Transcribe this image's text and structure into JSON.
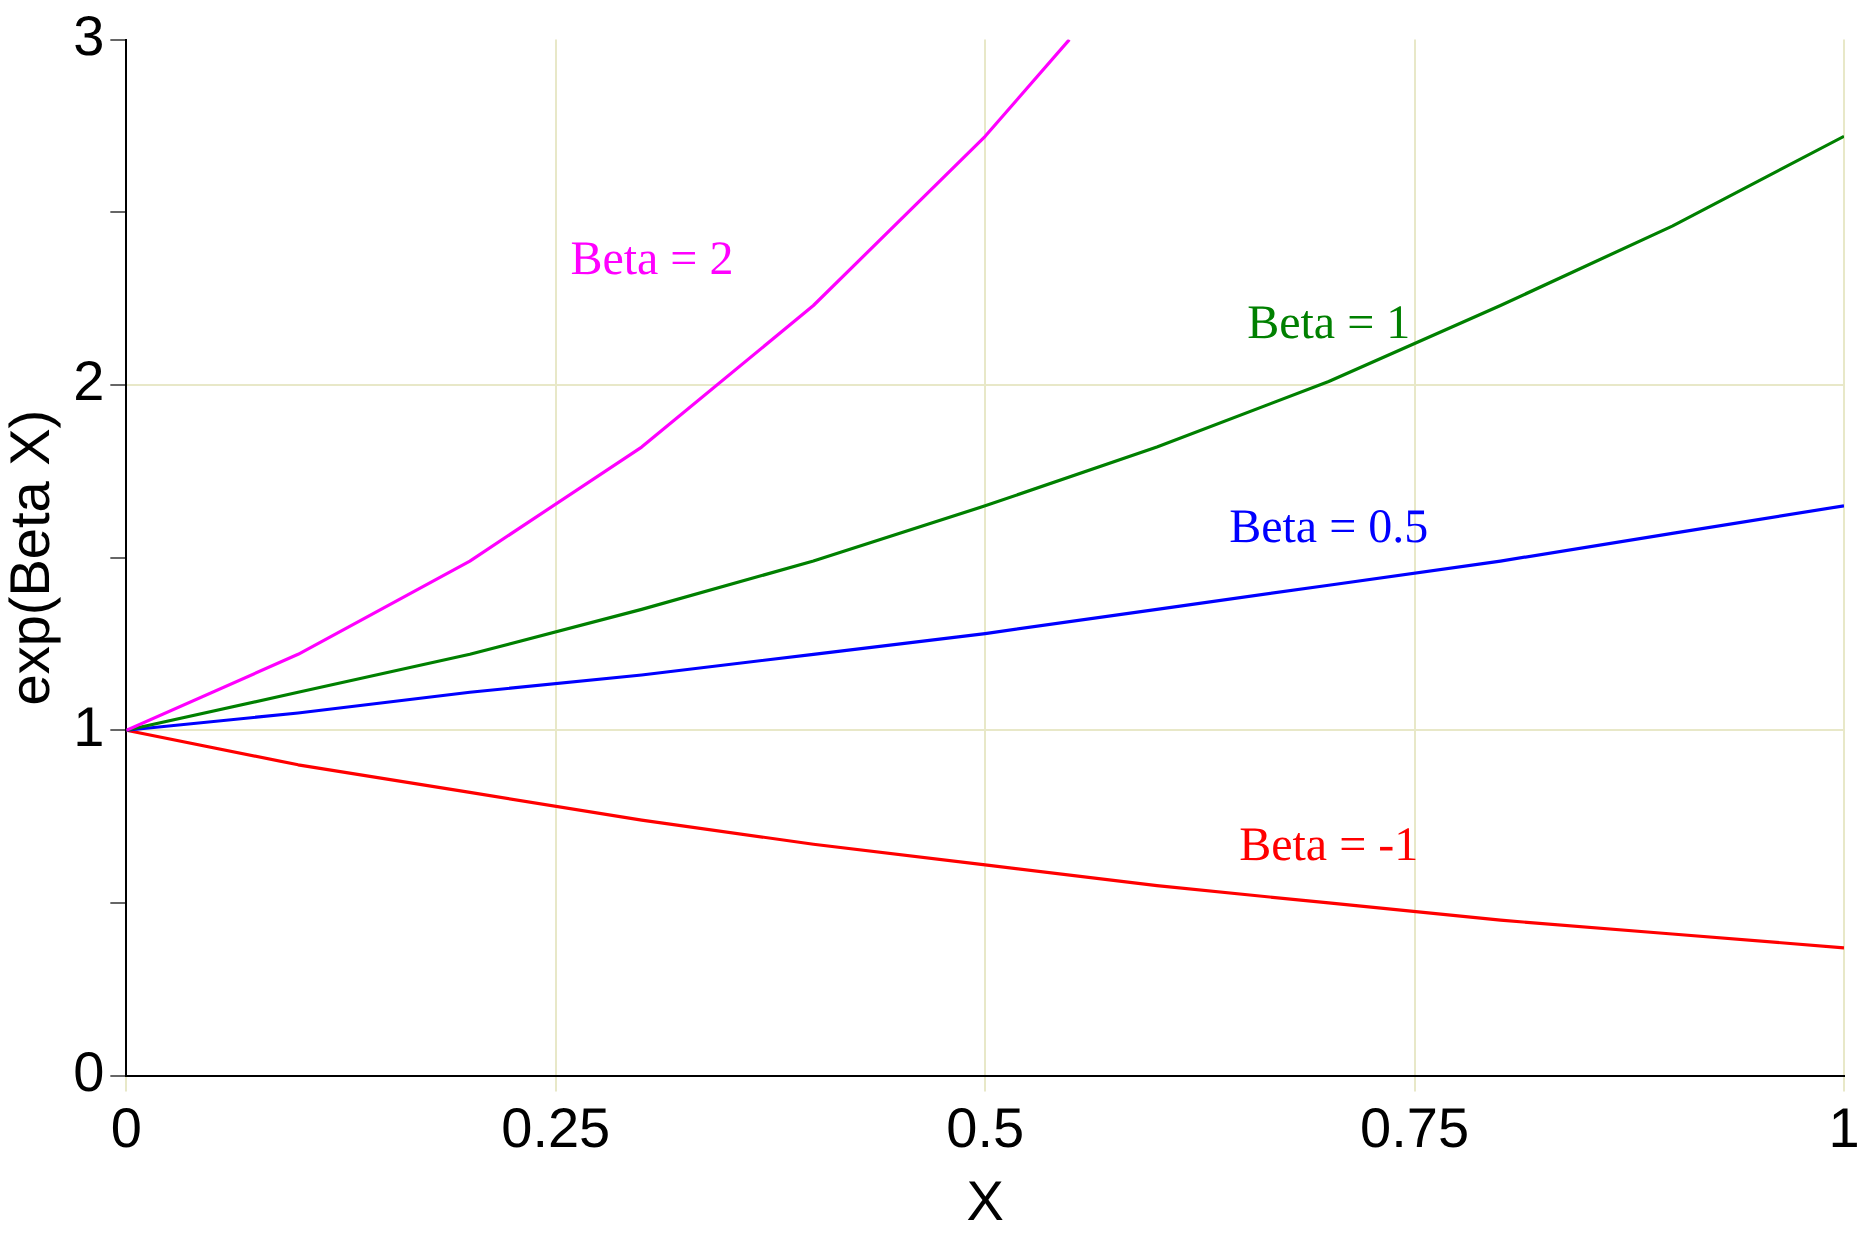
{
  "chart_data": {
    "type": "line",
    "xlabel": "X",
    "ylabel": "exp(Beta X)",
    "xlim": [
      0,
      1
    ],
    "xticks": [
      0,
      0.25,
      0.5,
      0.75,
      1
    ],
    "ylim": [
      0,
      3
    ],
    "yticks": [
      0,
      {
        "value": 0.5,
        "label": null
      },
      1,
      {
        "value": 1.5,
        "label": null
      },
      2,
      {
        "value": 2.5,
        "label": null
      },
      3
    ],
    "grid": true,
    "legend": false,
    "marker": "none",
    "line_style": "solid",
    "series": [
      {
        "name": "Beta = 2",
        "color": "#ff00ff",
        "x": [
          0,
          0.1,
          0.2,
          0.3,
          0.4,
          0.5,
          0.549
        ],
        "values": [
          1,
          1.22,
          1.49,
          1.82,
          2.23,
          2.72,
          3.0
        ]
      },
      {
        "name": "Beta = 1",
        "color": "#008000",
        "x": [
          0,
          0.1,
          0.2,
          0.3,
          0.4,
          0.5,
          0.6,
          0.7,
          0.8,
          0.9,
          1
        ],
        "values": [
          1,
          1.11,
          1.22,
          1.35,
          1.49,
          1.65,
          1.82,
          2.01,
          2.23,
          2.46,
          2.72
        ]
      },
      {
        "name": "Beta = 0.5",
        "color": "#0000ff",
        "x": [
          0,
          0.1,
          0.2,
          0.3,
          0.4,
          0.5,
          0.6,
          0.7,
          0.8,
          0.9,
          1
        ],
        "values": [
          1,
          1.05,
          1.11,
          1.16,
          1.22,
          1.28,
          1.35,
          1.42,
          1.49,
          1.57,
          1.65
        ]
      },
      {
        "name": "Beta = -1",
        "color": "#ff0000",
        "x": [
          0,
          0.1,
          0.2,
          0.3,
          0.4,
          0.5,
          0.6,
          0.7,
          0.8,
          0.9,
          1
        ],
        "values": [
          1,
          0.9,
          0.82,
          0.74,
          0.67,
          0.61,
          0.55,
          0.5,
          0.45,
          0.41,
          0.37
        ]
      }
    ]
  }
}
